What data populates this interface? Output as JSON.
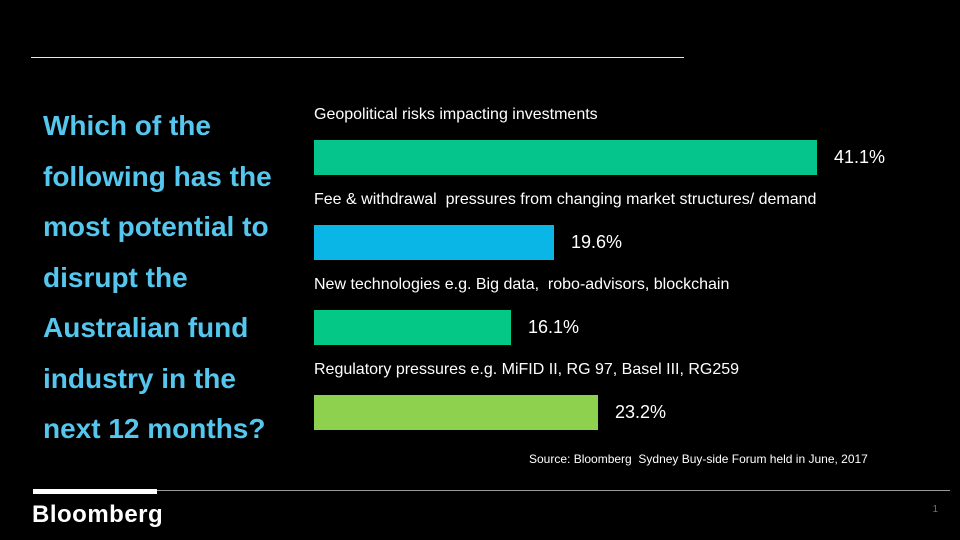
{
  "slide": {
    "question": "Which of the\nfollowing has the\nmost potential to\ndisrupt the\nAustralian fund\nindustry in the\nnext 12 months?",
    "question_color": "#55C6EE",
    "source": "Source: Bloomberg  Sydney Buy-side Forum held in June, 2017",
    "footer": {
      "brand": "Bloomberg",
      "page_number": "1"
    }
  },
  "chart_data": {
    "type": "bar",
    "orientation": "horizontal",
    "title": "",
    "xlabel": "",
    "ylabel": "",
    "grid": false,
    "legend": false,
    "data_labels": "outside-end",
    "xlim": [
      0,
      45
    ],
    "categories": [
      "Geopolitical risks impacting investments",
      "Fee & withdrawal  pressures from changing market structures/ demand",
      "New technologies e.g. Big data,  robo-advisors, blockchain",
      "Regulatory pressures e.g. MiFID II, RG 97, Basel III, RG259"
    ],
    "values": [
      41.1,
      19.6,
      16.1,
      23.2
    ],
    "value_labels": [
      "41.1%",
      "19.6%",
      "16.1%",
      "23.2%"
    ],
    "bar_colors": [
      "#05C58D",
      "#0AB6E6",
      "#04C885",
      "#8DD14F"
    ],
    "label_color": "#FFFFFF",
    "value_label_color": "#FFFFFF",
    "background_color": "#000000"
  }
}
